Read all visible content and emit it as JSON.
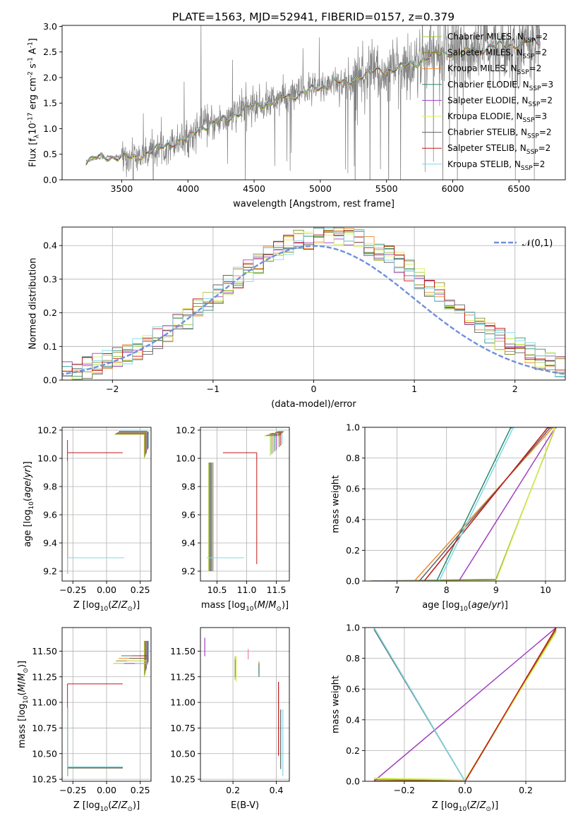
{
  "figure": {
    "title": "PLATE=1563, MJD=52941, FIBERID=0157, z=0.379"
  },
  "models": [
    {
      "name": "Chabrier MILES",
      "nssp": "2",
      "color": "#9ccc3c"
    },
    {
      "name": "Salpeter MILES",
      "nssp": "2",
      "color": "#8a8a2a"
    },
    {
      "name": "Kroupa MILES",
      "nssp": "2",
      "color": "#f08a30"
    },
    {
      "name": "Chabrier ELODIE",
      "nssp": "3",
      "color": "#2e8a6e"
    },
    {
      "name": "Salpeter ELODIE",
      "nssp": "2",
      "color": "#a040c0"
    },
    {
      "name": "Kroupa ELODIE",
      "nssp": "3",
      "color": "#d8f050"
    },
    {
      "name": "Chabrier STELIB",
      "nssp": "2",
      "color": "#606060"
    },
    {
      "name": "Salpeter STELIB",
      "nssp": "2",
      "color": "#c01818"
    },
    {
      "name": "Kroupa STELIB",
      "nssp": "2",
      "color": "#80d8e8"
    }
  ],
  "chart_data": [
    {
      "id": "spectrum",
      "type": "line",
      "xlabel": "wavelength [Angstrom, rest frame]",
      "ylabel": "Flux [f$_\\lambda$10$^{-17}$ erg cm$^{-2}$ s$^{-1}$ A$^{-1}$]",
      "xlim": [
        3050,
        6850
      ],
      "ylim": [
        0,
        3.02
      ],
      "xticks": [
        3500,
        4000,
        4500,
        5000,
        5500,
        6000,
        6500
      ],
      "yticks": [
        0.0,
        0.5,
        1.0,
        1.5,
        2.0,
        2.5,
        3.0
      ],
      "legend": "upper right",
      "data_color": "#808080",
      "continuum": [
        [
          3230,
          0.36
        ],
        [
          3300,
          0.42
        ],
        [
          3400,
          0.45
        ],
        [
          3500,
          0.45
        ],
        [
          3600,
          0.42
        ],
        [
          3700,
          0.55
        ],
        [
          3800,
          0.62
        ],
        [
          3900,
          0.75
        ],
        [
          4000,
          0.8
        ],
        [
          4100,
          1.05
        ],
        [
          4200,
          1.1
        ],
        [
          4300,
          1.2
        ],
        [
          4400,
          1.35
        ],
        [
          4500,
          1.45
        ],
        [
          4600,
          1.5
        ],
        [
          4700,
          1.6
        ],
        [
          4800,
          1.65
        ],
        [
          4900,
          1.75
        ],
        [
          5000,
          1.78
        ],
        [
          5100,
          1.95
        ],
        [
          5200,
          1.85
        ],
        [
          5300,
          2.05
        ],
        [
          5400,
          2.1
        ],
        [
          5500,
          2.15
        ],
        [
          5600,
          2.2
        ],
        [
          5700,
          2.25
        ],
        [
          5800,
          2.4
        ],
        [
          5900,
          2.45
        ],
        [
          6000,
          2.5
        ],
        [
          6100,
          2.5
        ],
        [
          6200,
          2.55
        ],
        [
          6300,
          2.6
        ],
        [
          6400,
          2.65
        ],
        [
          6500,
          2.65
        ],
        [
          6600,
          2.7
        ],
        [
          6660,
          2.72
        ]
      ]
    },
    {
      "id": "residuals",
      "type": "histogram",
      "xlabel": "(data-model)/error",
      "ylabel": "Normed distribution",
      "xlim": [
        -2.5,
        2.5
      ],
      "ylim": [
        0,
        0.455
      ],
      "xticks": [
        -2,
        -1,
        0,
        1,
        2
      ],
      "yticks": [
        0.0,
        0.1,
        0.2,
        0.3,
        0.4
      ],
      "grid": true,
      "bin_width": 0.1,
      "reference_curve": {
        "label": "$\\mathcal{N}(0,1)$",
        "mean": 0,
        "sigma": 1,
        "color": "#6f8fdc"
      },
      "legend": "upper right"
    },
    {
      "id": "age-vs-Z",
      "type": "scatter",
      "xlabel": "Z [log$_{10}$($Z$/$Z_\\odot$)]",
      "ylabel": "age  [log$_{10}$($age$/$yr$)]",
      "xlim": [
        -0.33,
        0.33
      ],
      "ylim": [
        9.13,
        10.22
      ],
      "xticks": [
        -0.25,
        0.0,
        0.25
      ],
      "yticks": [
        9.2,
        9.4,
        9.6,
        9.8,
        10.0,
        10.2
      ],
      "grid": true
    },
    {
      "id": "age-vs-mass",
      "type": "scatter",
      "xlabel": "mass [log$_{10}$($M$/$M_\\odot$)]",
      "xlim": [
        10.22,
        11.72
      ],
      "ylim": [
        9.13,
        10.22
      ],
      "xticks": [
        10.5,
        11.0,
        11.5
      ],
      "yticks": [
        9.2,
        9.4,
        9.6,
        9.8,
        10.0,
        10.2
      ],
      "grid": true
    },
    {
      "id": "cumulative-age",
      "type": "line",
      "xlabel": "age  [log$_{10}$($age$/$yr$)]",
      "ylabel": "mass weight",
      "xlim": [
        6.35,
        10.4
      ],
      "ylim": [
        0,
        1.0
      ],
      "xticks": [
        7,
        8,
        9,
        10
      ],
      "yticks": [
        0.0,
        0.2,
        0.4,
        0.6,
        0.8,
        1.0
      ],
      "grid": true
    },
    {
      "id": "mass-vs-Z",
      "type": "scatter",
      "xlabel": "Z [log$_{10}$($Z$/$Z_\\odot$)]",
      "ylabel": "mass [log$_{10}$($M$/$M_\\odot$)]",
      "xlim": [
        -0.33,
        0.33
      ],
      "ylim": [
        10.23,
        11.73
      ],
      "xticks": [
        -0.25,
        0.0,
        0.25
      ],
      "yticks": [
        10.25,
        10.5,
        10.75,
        11.0,
        11.25,
        11.5
      ],
      "grid": true
    },
    {
      "id": "mass-vs-EBV",
      "type": "scatter",
      "xlabel": "E(B-V)",
      "xlim": [
        0.05,
        0.46
      ],
      "ylim": [
        10.23,
        11.73
      ],
      "xticks": [
        0.2,
        0.4
      ],
      "yticks": [
        10.25,
        10.5,
        10.75,
        11.0,
        11.25,
        11.5
      ],
      "grid": true
    },
    {
      "id": "cumulative-Z",
      "type": "line",
      "xlabel": "Z [log$_{10}$($Z$/$Z_\\odot$)]",
      "ylabel": "mass weight",
      "xlim": [
        -0.33,
        0.33
      ],
      "ylim": [
        0,
        1.0
      ],
      "xticks": [
        -0.2,
        0.0,
        0.2
      ],
      "yticks": [
        0.0,
        0.2,
        0.4,
        0.6,
        0.8,
        1.0
      ],
      "grid": true
    }
  ]
}
